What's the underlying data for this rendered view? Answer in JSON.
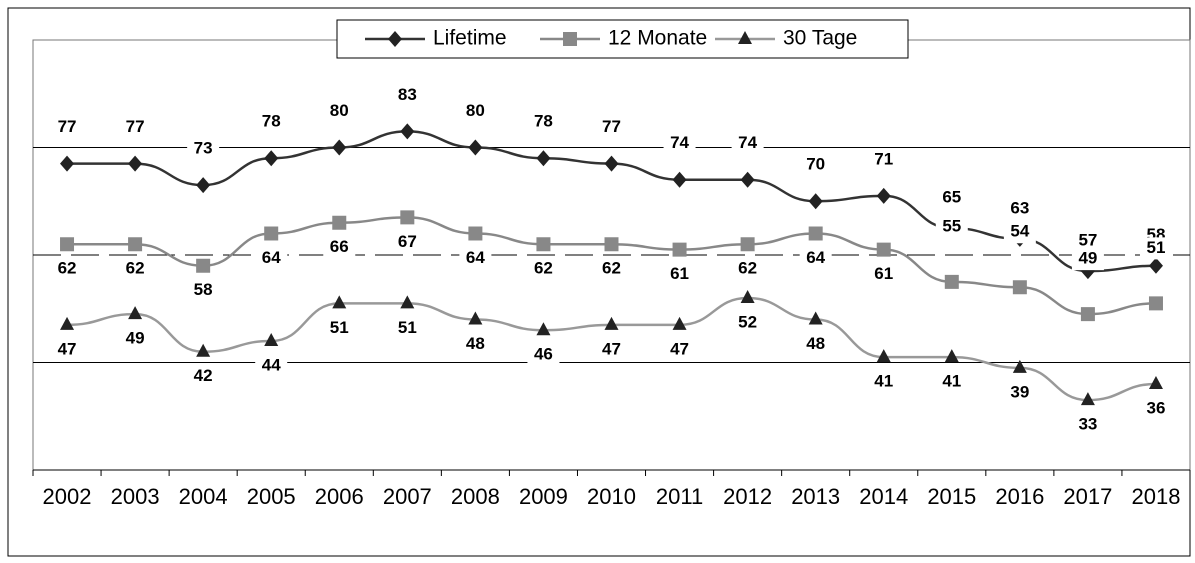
{
  "chart_data": {
    "type": "line",
    "categories": [
      "2002",
      "2003",
      "2004",
      "2005",
      "2006",
      "2007",
      "2008",
      "2009",
      "2010",
      "2011",
      "2012",
      "2013",
      "2014",
      "2015",
      "2016",
      "2017",
      "2018"
    ],
    "series": [
      {
        "name": "Lifetime",
        "color": "#333333",
        "marker": "diamond",
        "values": [
          77,
          77,
          73,
          78,
          80,
          83,
          80,
          78,
          77,
          74,
          74,
          70,
          71,
          65,
          63,
          57,
          58
        ]
      },
      {
        "name": "12 Monate",
        "color": "#888888",
        "marker": "square",
        "values": [
          62,
          62,
          58,
          64,
          66,
          67,
          64,
          62,
          62,
          61,
          62,
          64,
          61,
          55,
          54,
          49,
          51
        ]
      },
      {
        "name": "30 Tage",
        "color": "#999999",
        "marker": "triangle",
        "values": [
          47,
          49,
          42,
          44,
          51,
          51,
          48,
          46,
          47,
          47,
          52,
          48,
          41,
          41,
          39,
          33,
          36
        ]
      }
    ],
    "ylim": [
      20,
      100
    ],
    "yticks": [
      20,
      40,
      60,
      80,
      100
    ],
    "grid": true,
    "legend": "top"
  }
}
